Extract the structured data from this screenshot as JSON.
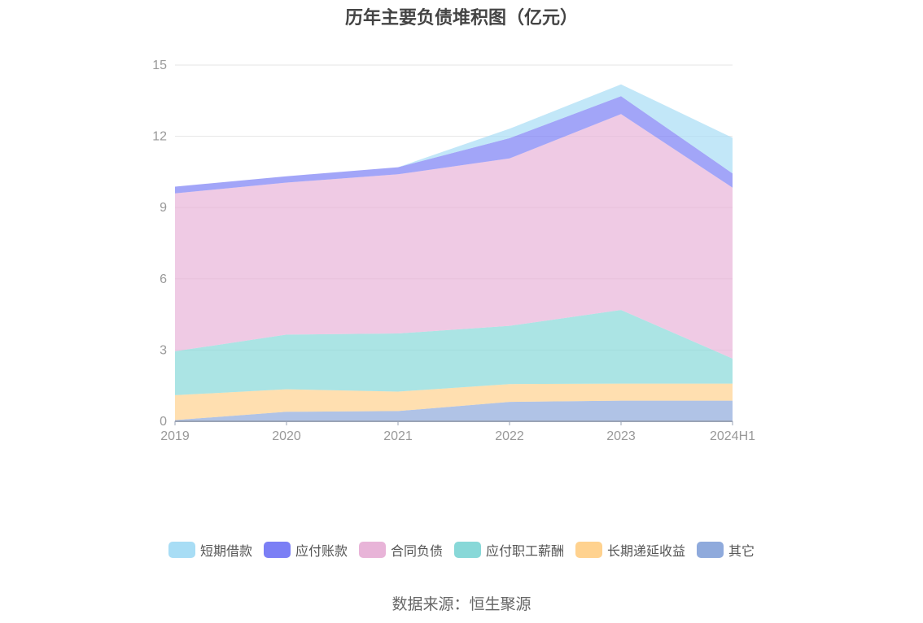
{
  "chart_data": {
    "type": "area",
    "stacked": true,
    "title": "历年主要负债堆积图（亿元）",
    "x": [
      "2019",
      "2020",
      "2021",
      "2022",
      "2023",
      "2024H1"
    ],
    "y_ticks": [
      "0",
      "3",
      "6",
      "9",
      "12",
      "15"
    ],
    "ylim": [
      0,
      15
    ],
    "grid": true,
    "legend_position": "bottom",
    "series": [
      {
        "name": "其它",
        "color": "#8faadc",
        "values": [
          0.05,
          0.4,
          0.43,
          0.82,
          0.87,
          0.87
        ]
      },
      {
        "name": "长期递延收益",
        "color": "#ffd28f",
        "values": [
          1.05,
          0.95,
          0.82,
          0.75,
          0.72,
          0.72
        ]
      },
      {
        "name": "应付职工薪酬",
        "color": "#88d8d8",
        "values": [
          1.85,
          2.3,
          2.45,
          2.45,
          3.1,
          1.05
        ]
      },
      {
        "name": "合同负债",
        "color": "#e8b4d8",
        "values": [
          6.65,
          6.4,
          6.7,
          7.05,
          8.25,
          7.2
        ]
      },
      {
        "name": "应付账款",
        "color": "#7b7ff5",
        "values": [
          0.28,
          0.27,
          0.3,
          0.85,
          0.75,
          0.6
        ]
      },
      {
        "name": "短期借款",
        "color": "#a8ddf5",
        "values": [
          0.0,
          0.0,
          0.0,
          0.4,
          0.5,
          1.5
        ]
      }
    ],
    "source": "数据来源：恒生聚源"
  }
}
